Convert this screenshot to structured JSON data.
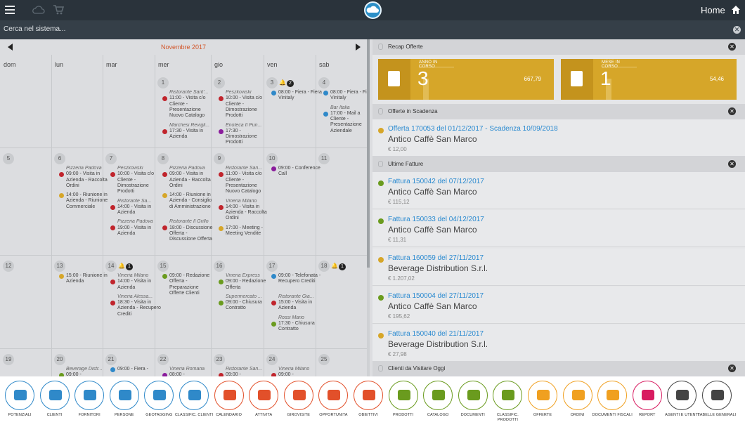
{
  "topbar": {
    "home_label": "Home"
  },
  "search": {
    "placeholder": "Cerca nel sistema..."
  },
  "calendar": {
    "month": "Novembre 2017",
    "weekdays": [
      "dom",
      "lun",
      "mar",
      "mer",
      "gio",
      "ven",
      "sab"
    ],
    "days": [
      {
        "n": "1",
        "col": 3,
        "row": 0,
        "events": [
          {
            "title": "Ristorante Sant'...",
            "text": "11:00 - Visita c/o Cliente - Presentazione Nuovo Catalogo",
            "color": "#c0242c"
          },
          {
            "title": "Marchesi Revigli...",
            "text": "17:30 - Visita in Azienda",
            "color": "#c0242c"
          }
        ]
      },
      {
        "n": "2",
        "col": 4,
        "row": 0,
        "events": [
          {
            "title": "Peszkowski",
            "text": "10:00 - Visita c/o Cliente - Dimostrazione Prodotti",
            "color": "#c0242c"
          },
          {
            "title": "Enoteca Il Pun...",
            "text": "17:30 - Dimostrazione Prodotti",
            "color": "#8a1c9c"
          }
        ]
      },
      {
        "n": "3",
        "col": 5,
        "row": 0,
        "bell": "2",
        "events": [
          {
            "title": "",
            "text": "08:00 - Fiera - Fiera Vinitaly",
            "color": "#2f89c9"
          }
        ]
      },
      {
        "n": "4",
        "col": 6,
        "row": 0,
        "events": [
          {
            "title": "",
            "text": "08:00 - Fiera - Fiera Vinitaly",
            "color": "#2f89c9"
          },
          {
            "title": "Bar Italia",
            "text": "17:00 - Mail a Cliente - Presentazione Aziendale",
            "color": "#2f89c9"
          }
        ]
      },
      {
        "n": "5",
        "col": 0,
        "row": 1,
        "events": []
      },
      {
        "n": "6",
        "col": 1,
        "row": 1,
        "events": [
          {
            "title": "Pizzeria Padova",
            "text": "09:00 - Visita in Azienda - Raccolta Ordini",
            "color": "#c0242c"
          },
          {
            "title": "",
            "text": "14:00 - Riunione in Azienda - Riunione Commerciale",
            "color": "#d6a629"
          }
        ]
      },
      {
        "n": "7",
        "col": 2,
        "row": 1,
        "events": [
          {
            "title": "Peszkowski",
            "text": "10:00 - Visita c/o Cliente - Dimostrazione Prodotti",
            "color": "#c0242c"
          },
          {
            "title": "Ristorante Sa...",
            "text": "14:00 - Visita in Azienda",
            "color": "#c0242c"
          },
          {
            "title": "Pizzeria Padova",
            "text": "19:00 - Visita in Azienda",
            "color": "#c0242c"
          }
        ]
      },
      {
        "n": "8",
        "col": 3,
        "row": 1,
        "events": [
          {
            "title": "Pizzeria Padova",
            "text": "09:00 - Visita in Azienda - Raccolta Ordini",
            "color": "#c0242c"
          },
          {
            "title": "",
            "text": "14:00 - Riunione in Azienda - Consiglio di Amministrazione",
            "color": "#d6a629"
          },
          {
            "title": "Ristorante Il Grillo",
            "text": "18:00 - Discussione Offerta - Discussione Offerta",
            "color": "#c0242c"
          }
        ]
      },
      {
        "n": "9",
        "col": 4,
        "row": 1,
        "events": [
          {
            "title": "Ristorante San...",
            "text": "11:00 - Visita c/o Cliente - Presentazione Nuovo Catalogo",
            "color": "#c0242c"
          },
          {
            "title": "Vineria Milano",
            "text": "14:00 - Visita in Azienda - Raccolta Ordini",
            "color": "#c0242c"
          },
          {
            "title": "",
            "text": "17:00 - Meeting - Meeting Vendite",
            "color": "#d6a629"
          }
        ]
      },
      {
        "n": "10",
        "col": 5,
        "row": 1,
        "events": [
          {
            "title": "",
            "text": "09:00 - Conference Call",
            "color": "#8a1c9c"
          }
        ]
      },
      {
        "n": "11",
        "col": 6,
        "row": 1,
        "events": []
      },
      {
        "n": "12",
        "col": 0,
        "row": 2,
        "events": []
      },
      {
        "n": "13",
        "col": 1,
        "row": 2,
        "events": [
          {
            "title": "",
            "text": "15:00 - Riunione in Azienda",
            "color": "#d6a629"
          }
        ]
      },
      {
        "n": "14",
        "col": 2,
        "row": 2,
        "bell": "1",
        "events": [
          {
            "title": "Vineria Milano",
            "text": "14:00 - Visita in Azienda",
            "color": "#c0242c"
          },
          {
            "title": "Vineria Alessa...",
            "text": "18:30 - Visita in Azienda - Recupero Crediti",
            "color": "#c0242c"
          }
        ]
      },
      {
        "n": "15",
        "col": 3,
        "row": 2,
        "events": [
          {
            "title": "",
            "text": "09:00 - Redazione Offerta - Preparazione Offerte Clienti",
            "color": "#6a9b1e"
          }
        ]
      },
      {
        "n": "16",
        "col": 4,
        "row": 2,
        "events": [
          {
            "title": "Vineria Express",
            "text": "09:00 - Redazione Offerta",
            "color": "#6a9b1e"
          },
          {
            "title": "Supermercato ...",
            "text": "09:00 - Chiusura Contratto",
            "color": "#6a9b1e"
          }
        ]
      },
      {
        "n": "17",
        "col": 5,
        "row": 2,
        "events": [
          {
            "title": "",
            "text": "09:00 - Telefonata - Recupero Crediti",
            "color": "#2f89c9"
          },
          {
            "title": "Ristorante Gia...",
            "text": "15:00 - Visita in Azienda",
            "color": "#c0242c"
          },
          {
            "title": "Rossi Mario",
            "text": "17:30 - Chiusura Contratto",
            "color": "#6a9b1e"
          }
        ]
      },
      {
        "n": "18",
        "col": 6,
        "row": 2,
        "bell": "1",
        "events": []
      },
      {
        "n": "19",
        "col": 0,
        "row": 3,
        "events": []
      },
      {
        "n": "20",
        "col": 1,
        "row": 3,
        "events": [
          {
            "title": "Beverage Distr...",
            "text": "09:00 -",
            "color": "#6a9b1e"
          }
        ]
      },
      {
        "n": "21",
        "col": 2,
        "row": 3,
        "events": [
          {
            "title": "",
            "text": "09:00 - Fiera -",
            "color": "#2f89c9"
          }
        ]
      },
      {
        "n": "22",
        "col": 3,
        "row": 3,
        "events": [
          {
            "title": "Vineria Romana",
            "text": "08:00 -",
            "color": "#8a1c9c"
          }
        ]
      },
      {
        "n": "23",
        "col": 4,
        "row": 3,
        "events": [
          {
            "title": "Ristorante San...",
            "text": "09:00 -",
            "color": "#c0242c"
          }
        ]
      },
      {
        "n": "24",
        "col": 5,
        "row": 3,
        "events": [
          {
            "title": "Vineria Milano",
            "text": "09:00 -",
            "color": "#c0242c"
          }
        ]
      },
      {
        "n": "25",
        "col": 6,
        "row": 3,
        "events": []
      }
    ]
  },
  "recap": {
    "title": "Recap Offerte",
    "cards": [
      {
        "label": "ANNO IN CORSO",
        "count": "3",
        "amount": "667,79"
      },
      {
        "label": "MESE IN CORSO",
        "count": "1",
        "amount": "54,46"
      }
    ]
  },
  "scadenza": {
    "title": "Offerte in Scadenza",
    "items": [
      {
        "ref": "Offerta 170053 del 01/12/2017 - Scadenza 10/09/2018",
        "client": "Antico Caffè San Marco",
        "amount": "€ 12,00",
        "color": "#d6a629"
      }
    ]
  },
  "fatture": {
    "title": "Ultime Fatture",
    "items": [
      {
        "ref": "Fattura 150042 del 07/12/2017",
        "client": "Antico Caffè San Marco",
        "amount": "€ 115,12",
        "color": "#6a9b1e"
      },
      {
        "ref": "Fattura 150033 del 04/12/2017",
        "client": "Antico Caffè San Marco",
        "amount": "€ 11,31",
        "color": "#6a9b1e"
      },
      {
        "ref": "Fattura 160059 del 27/11/2017",
        "client": "Beverage Distribution S.r.l.",
        "amount": "€ 1.207,02",
        "color": "#d6a629"
      },
      {
        "ref": "Fattura 150004 del 27/11/2017",
        "client": "Antico Caffè San Marco",
        "amount": "€ 195,62",
        "color": "#6a9b1e"
      },
      {
        "ref": "Fattura 150040 del 21/11/2017",
        "client": "Beverage Distribution S.r.l.",
        "amount": "€ 27,98",
        "color": "#d6a629"
      }
    ]
  },
  "visite": {
    "title": "Clienti da Visitare Oggi"
  },
  "tabs": [
    {
      "label": "POTENZIALI",
      "color": "#2f89c9",
      "icon": "people-outline-icon"
    },
    {
      "label": "CLIENTI",
      "color": "#2f89c9",
      "icon": "people-icon"
    },
    {
      "label": "FORNITORI",
      "color": "#2f89c9",
      "icon": "truck-icon"
    },
    {
      "label": "PERSONE",
      "color": "#2f89c9",
      "icon": "person-icon"
    },
    {
      "label": "GEOTAGGING",
      "color": "#2f89c9",
      "icon": "map-pin-icon"
    },
    {
      "label": "CLASSIFIC. CLIENTI",
      "color": "#2f89c9",
      "icon": "book-icon"
    },
    {
      "label": "CALENDARIO",
      "color": "#e2502a",
      "icon": "calendar-icon"
    },
    {
      "label": "ATTIVITA",
      "color": "#e2502a",
      "icon": "clipboard-icon"
    },
    {
      "label": "GIROVISITE",
      "color": "#e2502a",
      "icon": "car-icon"
    },
    {
      "label": "OPPORTUNITA",
      "color": "#e2502a",
      "icon": "thumbs-up-icon"
    },
    {
      "label": "OBIETTIVI",
      "color": "#e2502a",
      "icon": "golf-flag-icon"
    },
    {
      "label": "PRODOTTI",
      "color": "#6a9b1e",
      "icon": "products-icon"
    },
    {
      "label": "CATALOGO",
      "color": "#6a9b1e",
      "icon": "catalog-icon"
    },
    {
      "label": "DOCUMENTI",
      "color": "#6a9b1e",
      "icon": "folder-star-icon"
    },
    {
      "label": "CLASSIFIC. PRODOTTI",
      "color": "#6a9b1e",
      "icon": "book-icon"
    },
    {
      "label": "OFFERTE",
      "color": "#f0a020",
      "icon": "document-icon"
    },
    {
      "label": "ORDINI",
      "color": "#f0a020",
      "icon": "clipboard-list-icon"
    },
    {
      "label": "DOCUMENTI FISCALI",
      "color": "#f0a020",
      "icon": "folder-icon"
    },
    {
      "label": "REPORT",
      "color": "#d81b60",
      "icon": "trending-up-icon"
    },
    {
      "label": "AGENTI E UTENTI",
      "color": "#444444",
      "icon": "contact-card-icon"
    },
    {
      "label": "TABELLE GENERALI",
      "color": "#444444",
      "icon": "window-icon"
    }
  ]
}
